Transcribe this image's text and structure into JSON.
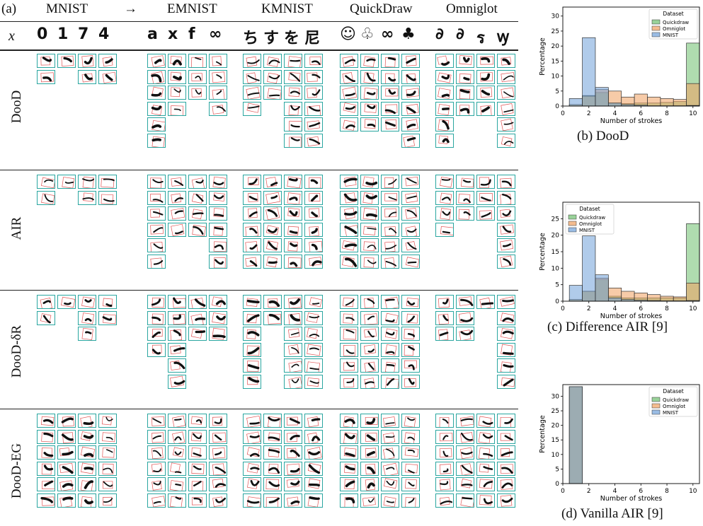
{
  "panel_label": "(a)",
  "arrow": "→",
  "columns": [
    "MNIST",
    "EMNIST",
    "KMNIST",
    "QuickDraw",
    "Omniglot"
  ],
  "x_symbol": "x",
  "x_glyphs": {
    "MNIST": [
      "0",
      "1",
      "7",
      "4"
    ],
    "EMNIST": [
      "a",
      "x",
      "f",
      "∞"
    ],
    "KMNIST": [
      "ち",
      "す",
      "を",
      "尼"
    ],
    "QuickDraw": [
      "☺",
      "♧",
      "∞",
      "♣"
    ],
    "Omniglot": [
      "∂",
      "∂",
      "ร",
      "ꝡ"
    ]
  },
  "rows": [
    "DooD",
    "AIR",
    "DooD-δR",
    "DooD-EG"
  ],
  "chart_data": [
    {
      "type": "bar",
      "caption": "(b) DooD",
      "xlabel": "Number of strokes",
      "ylabel": "Percentage",
      "legend_title": "Dataset",
      "legend": [
        "Quickdraw",
        "Omniglot",
        "MNIST"
      ],
      "legend_position": "top-right",
      "xlim": [
        0,
        10.5
      ],
      "ylim": [
        0,
        33
      ],
      "xticks": [
        "0",
        "2",
        "4",
        "6",
        "8",
        "10"
      ],
      "yticks": [
        "0",
        "5",
        "10",
        "15",
        "20",
        "25",
        "30"
      ],
      "categories": [
        "1",
        "2",
        "3",
        "4",
        "5",
        "6",
        "7",
        "8",
        "9",
        "10"
      ],
      "series": [
        {
          "name": "Quickdraw",
          "color": "#6dbf6d",
          "values": [
            0.5,
            3.5,
            4.5,
            1.0,
            0.8,
            1.0,
            1.0,
            1.2,
            1.5,
            21
          ]
        },
        {
          "name": "Omniglot",
          "color": "#f0a060",
          "values": [
            0.5,
            3.3,
            5.5,
            5.0,
            3.0,
            4.0,
            3.0,
            2.5,
            2.2,
            7.5
          ]
        },
        {
          "name": "MNIST",
          "color": "#6fa0d8",
          "values": [
            2.5,
            22.8,
            6.2,
            1.0,
            0.5,
            0.3,
            0.1,
            0.1,
            0.1,
            0.2
          ]
        }
      ]
    },
    {
      "type": "bar",
      "caption": "(c) Difference AIR [9]",
      "xlabel": "Number of strokes",
      "ylabel": "Percentage",
      "legend_title": "Dataset",
      "legend": [
        "Quickdraw",
        "Omniglot",
        "MNIST"
      ],
      "legend_position": "top-left",
      "xlim": [
        0,
        10.5
      ],
      "ylim": [
        0,
        30
      ],
      "xticks": [
        "0",
        "2",
        "4",
        "6",
        "8",
        "10"
      ],
      "yticks": [
        "0",
        "5",
        "10",
        "15",
        "20",
        "25"
      ],
      "categories": [
        "1",
        "2",
        "3",
        "4",
        "5",
        "6",
        "7",
        "8",
        "9",
        "10"
      ],
      "series": [
        {
          "name": "Quickdraw",
          "color": "#6dbf6d",
          "values": [
            0.5,
            3.0,
            6.5,
            1.5,
            1.0,
            1.0,
            1.0,
            1.0,
            1.0,
            23.5
          ]
        },
        {
          "name": "Omniglot",
          "color": "#f0a060",
          "values": [
            0.5,
            3.0,
            7.0,
            4.0,
            3.0,
            2.5,
            2.0,
            1.5,
            1.3,
            5.5
          ]
        },
        {
          "name": "MNIST",
          "color": "#6fa0d8",
          "values": [
            4.8,
            19.8,
            8.0,
            1.0,
            0.5,
            0.3,
            0.2,
            0.1,
            0.1,
            0.2
          ]
        }
      ]
    },
    {
      "type": "bar",
      "caption": "(d) Vanilla AIR [9]",
      "xlabel": "Number of strokes",
      "ylabel": "Percentage",
      "legend_title": "Dataset",
      "legend": [
        "Quickdraw",
        "Omniglot",
        "MNIST"
      ],
      "legend_position": "top-right",
      "xlim": [
        0,
        10.5
      ],
      "ylim": [
        0,
        34
      ],
      "xticks": [
        "0",
        "2",
        "4",
        "6",
        "8",
        "10"
      ],
      "yticks": [
        "0",
        "5",
        "10",
        "15",
        "20",
        "25",
        "30"
      ],
      "categories": [
        "1",
        "2",
        "3",
        "4",
        "5",
        "6",
        "7",
        "8",
        "9",
        "10"
      ],
      "series": [
        {
          "name": "Quickdraw",
          "color": "#6dbf6d",
          "values": [
            33.3,
            0,
            0,
            0,
            0,
            0,
            0,
            0,
            0,
            0
          ]
        },
        {
          "name": "Omniglot",
          "color": "#f0a060",
          "values": [
            33.3,
            0,
            0,
            0,
            0,
            0,
            0,
            0,
            0,
            0
          ]
        },
        {
          "name": "MNIST",
          "color": "#6fa0d8",
          "values": [
            33.3,
            0,
            0,
            0,
            0,
            0,
            0,
            0,
            0,
            0
          ]
        }
      ]
    }
  ]
}
